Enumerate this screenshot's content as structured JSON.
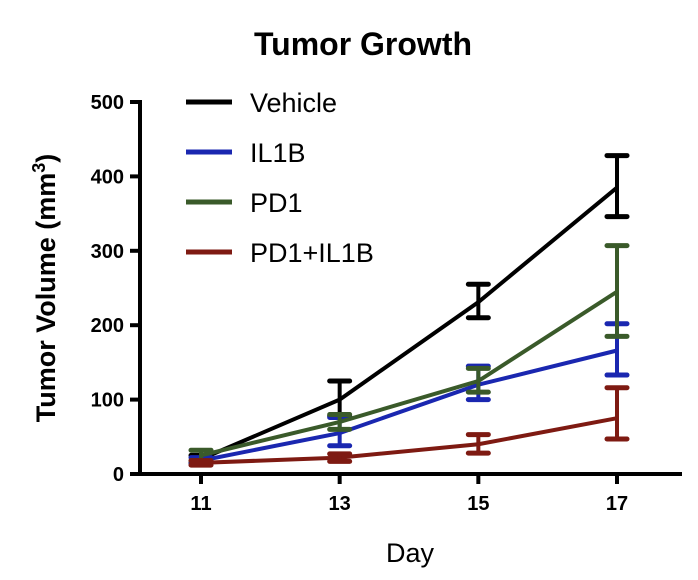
{
  "chart_data": {
    "type": "line",
    "title": "Tumor Growth",
    "xlabel": "Day",
    "ylabel": "Tumor  Volume (mm",
    "ylabel_sup": "3",
    "ylabel_close": ")",
    "x": [
      11,
      13,
      15,
      17
    ],
    "xticks": [
      "11",
      "13",
      "15",
      "17"
    ],
    "ylim": [
      0,
      500
    ],
    "yticks": [
      "0",
      "100",
      "200",
      "300",
      "400",
      "500"
    ],
    "legend_position": "top-left",
    "series": [
      {
        "name": "Vehicle",
        "color": "#000000",
        "values": [
          20,
          100,
          231,
          385
        ],
        "err_low": [
          15,
          78,
          210,
          346
        ],
        "err_high": [
          25,
          125,
          255,
          428
        ]
      },
      {
        "name": "IL1B",
        "color": "#1a27b0",
        "values": [
          18,
          55,
          120,
          166
        ],
        "err_low": [
          14,
          38,
          100,
          133
        ],
        "err_high": [
          22,
          76,
          145,
          202
        ]
      },
      {
        "name": "PD1",
        "color": "#3a5a2a",
        "values": [
          25,
          70,
          125,
          245
        ],
        "err_low": [
          18,
          60,
          110,
          185
        ],
        "err_high": [
          32,
          80,
          142,
          307
        ]
      },
      {
        "name": "PD1+IL1B",
        "color": "#7e1a12",
        "values": [
          15,
          22,
          40,
          75
        ],
        "err_low": [
          12,
          17,
          28,
          47
        ],
        "err_high": [
          18,
          27,
          53,
          116
        ]
      }
    ]
  }
}
